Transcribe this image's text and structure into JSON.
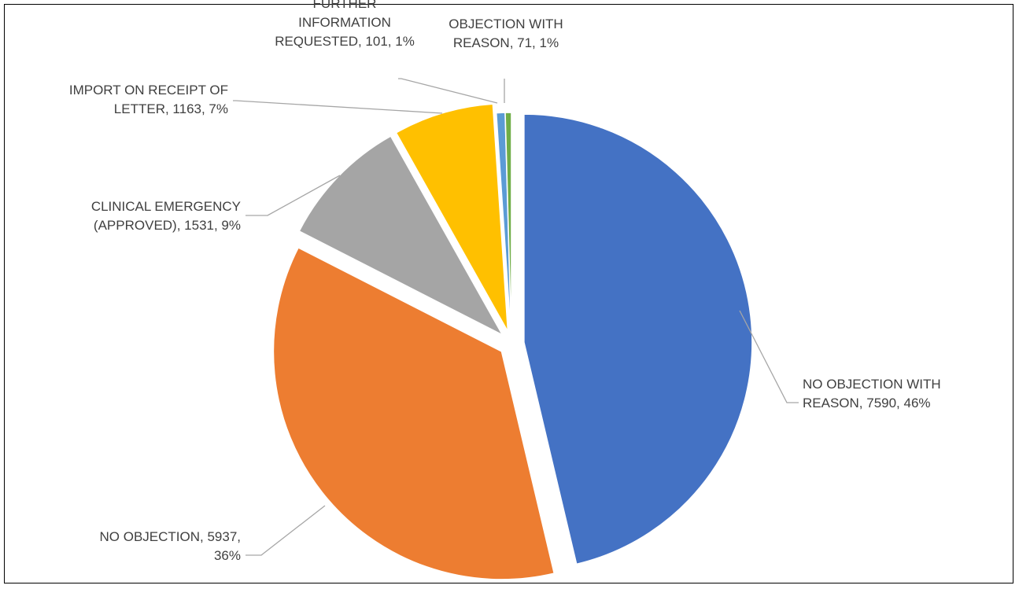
{
  "chart_data": {
    "type": "pie",
    "slices": [
      {
        "label": "NO OBJECTION WITH REASON",
        "value": 7590,
        "percent": "46%",
        "color": "#4472C4",
        "label_lines": [
          "NO OBJECTION WITH",
          "REASON, 7590, 46%"
        ]
      },
      {
        "label": "NO OBJECTION",
        "value": 5937,
        "percent": "36%",
        "color": "#ED7D31",
        "label_lines": [
          "NO OBJECTION, 5937,",
          "36%"
        ]
      },
      {
        "label": "CLINICAL EMERGENCY (APPROVED)",
        "value": 1531,
        "percent": "9%",
        "color": "#A5A5A5",
        "label_lines": [
          "CLINICAL EMERGENCY",
          "(APPROVED), 1531, 9%"
        ]
      },
      {
        "label": "IMPORT ON RECEIPT OF LETTER",
        "value": 1163,
        "percent": "7%",
        "color": "#FFC000",
        "label_lines": [
          "IMPORT ON RECEIPT OF",
          "LETTER, 1163, 7%"
        ]
      },
      {
        "label": "FURTHER INFORMATION REQUESTED",
        "value": 101,
        "percent": "1%",
        "color": "#5B9BD5",
        "label_lines": [
          "FURTHER",
          "INFORMATION",
          "REQUESTED, 101, 1%"
        ]
      },
      {
        "label": "OBJECTION WITH REASON",
        "value": 71,
        "percent": "1%",
        "color": "#70AD47",
        "label_lines": [
          "OBJECTION WITH",
          "REASON, 71, 1%"
        ]
      }
    ],
    "start_angle_deg": 0,
    "direction": "clockwise",
    "exploded": true,
    "legend": "none",
    "title": ""
  }
}
